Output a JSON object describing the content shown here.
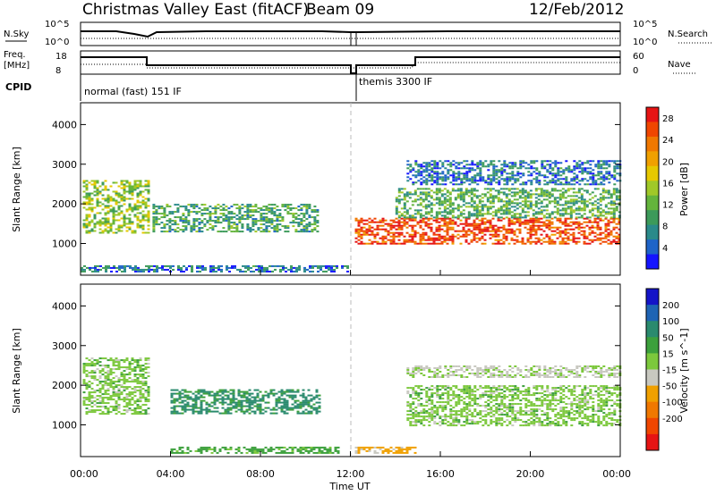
{
  "header": {
    "station": "Christmas Valley East (fitACF)",
    "beam": "Beam 09",
    "date": "12/Feb/2012"
  },
  "panels": {
    "nsky_label": "N.Sky",
    "nsearch_label": "N.Search",
    "freq_label_1": "Freq.",
    "freq_label_2": "[MHz]",
    "nave_label": "Nave",
    "cpid_label": "CPID",
    "nsky_ticks": [
      "10^5",
      "10^0"
    ],
    "nsearch_ticks": [
      "10^5",
      "10^0"
    ],
    "freq_ticks": [
      "18",
      "8"
    ],
    "nave_ticks": [
      "60",
      "0"
    ],
    "cpid_modes": [
      "normal (fast) 151 IF",
      "themis 3300 IF"
    ]
  },
  "chart_data": [
    {
      "type": "heatmap",
      "name": "power",
      "ylabel": "Slant Range [km]",
      "xlabel": "",
      "x_ticks": [
        "00:00",
        "04:00",
        "08:00",
        "12:00",
        "16:00",
        "20:00",
        "00:00"
      ],
      "y_ticks": [
        "1000",
        "2000",
        "3000",
        "4000"
      ],
      "ylim": [
        200,
        4550
      ],
      "xlim": [
        0,
        24
      ],
      "colorbar": {
        "label": "Power [dB]",
        "ticks": [
          "4",
          "8",
          "12",
          "16",
          "20",
          "24",
          "28"
        ],
        "range": [
          0,
          30
        ],
        "colors": [
          "#1414ff",
          "#1e64c8",
          "#2a8a8a",
          "#3c9a5a",
          "#64b43c",
          "#a0c828",
          "#e6c800",
          "#f0a000",
          "#f07800",
          "#f04600",
          "#e61414"
        ]
      },
      "regions": [
        {
          "t": [
            0.1,
            3.0
          ],
          "r": [
            1250,
            2600
          ],
          "v": 14
        },
        {
          "t": [
            3.2,
            10.6
          ],
          "r": [
            1300,
            2000
          ],
          "v": 10
        },
        {
          "t": [
            0.0,
            12.0
          ],
          "r": [
            300,
            450
          ],
          "v": 6
        },
        {
          "t": [
            12.2,
            24.0
          ],
          "r": [
            1000,
            1650
          ],
          "v": 26
        },
        {
          "t": [
            14.0,
            24.0
          ],
          "r": [
            1650,
            2400
          ],
          "v": 11
        },
        {
          "t": [
            14.5,
            24.0
          ],
          "r": [
            2500,
            3100
          ],
          "v": 6
        }
      ]
    },
    {
      "type": "heatmap",
      "name": "velocity",
      "ylabel": "Slant Range [km]",
      "xlabel": "Time UT",
      "x_ticks": [
        "00:00",
        "04:00",
        "08:00",
        "12:00",
        "16:00",
        "20:00",
        "00:00"
      ],
      "y_ticks": [
        "1000",
        "2000",
        "3000",
        "4000"
      ],
      "ylim": [
        200,
        4550
      ],
      "xlim": [
        0,
        24
      ],
      "colorbar": {
        "label": "Velocity [m s^-1]",
        "ticks": [
          "200",
          "100",
          "50",
          "15",
          "-15",
          "-50",
          "-100",
          "-200"
        ],
        "colors": [
          "#1414c8",
          "#1e64b4",
          "#2a8a6e",
          "#3ca03c",
          "#7cc83c",
          "#c8c8c0",
          "#f0a000",
          "#f07800",
          "#f04600",
          "#e61414"
        ]
      },
      "regions": [
        {
          "t": [
            0.1,
            3.0
          ],
          "r": [
            1300,
            2700
          ],
          "v": 0
        },
        {
          "t": [
            4.0,
            10.6
          ],
          "r": [
            1300,
            1900
          ],
          "v": 60
        },
        {
          "t": [
            4.0,
            11.5
          ],
          "r": [
            300,
            450
          ],
          "v": 30
        },
        {
          "t": [
            12.2,
            15.0
          ],
          "r": [
            300,
            450
          ],
          "v": -60
        },
        {
          "t": [
            14.5,
            24.0
          ],
          "r": [
            1000,
            2000
          ],
          "v": 0
        },
        {
          "t": [
            14.5,
            24.0
          ],
          "r": [
            2200,
            2500
          ],
          "v": -20
        }
      ]
    }
  ]
}
